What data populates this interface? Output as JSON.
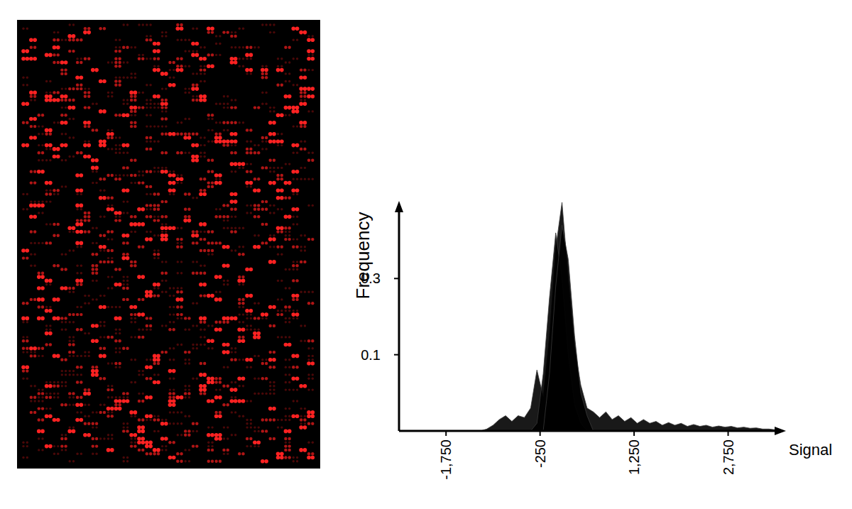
{
  "chart_data": {
    "type": "area",
    "xlabel": "Signal",
    "ylabel": "Frequency",
    "x": [
      -1300,
      -1200,
      -1100,
      -1000,
      -900,
      -800,
      -700,
      -600,
      -500,
      -400,
      -300,
      -200,
      -100,
      0,
      100,
      200,
      300,
      400,
      500,
      600,
      700,
      800,
      900,
      1000,
      1100,
      1200,
      1300,
      1400,
      1500,
      1600,
      1700,
      1800,
      1900,
      2000,
      2100,
      2200,
      2300,
      2400,
      2500,
      2600,
      2700,
      2800,
      2900,
      3000,
      3100,
      3200,
      3300,
      3400,
      3500,
      3600
    ],
    "series": [
      {
        "color": "#000000",
        "values": [
          -0.1,
          -0.1,
          -0.095,
          -0.085,
          -0.07,
          -0.06,
          -0.075,
          -0.06,
          -0.065,
          -0.04,
          0.06,
          -0.01,
          0.15,
          0.38,
          0.5,
          0.3,
          0.12,
          0.02,
          -0.04,
          -0.05,
          -0.065,
          -0.05,
          -0.07,
          -0.06,
          -0.075,
          -0.065,
          -0.08,
          -0.07,
          -0.08,
          -0.075,
          -0.085,
          -0.078,
          -0.085,
          -0.08,
          -0.088,
          -0.083,
          -0.088,
          -0.085,
          -0.09,
          -0.087,
          -0.09,
          -0.088,
          -0.092,
          -0.09,
          -0.093,
          -0.092,
          -0.095,
          -0.095,
          -0.097,
          -0.1
        ]
      },
      {
        "color": "#000000",
        "values": [
          -0.1,
          -0.1,
          -0.1,
          -0.1,
          -0.1,
          -0.1,
          -0.1,
          -0.1,
          -0.1,
          -0.1,
          -0.08,
          0.05,
          0.25,
          0.42,
          0.3,
          0.1,
          -0.03,
          -0.08,
          -0.1,
          -0.1,
          -0.1,
          -0.1,
          -0.1,
          -0.1,
          -0.1,
          -0.1,
          -0.1,
          -0.1,
          -0.1,
          -0.1,
          -0.1,
          -0.1,
          -0.1,
          -0.1,
          -0.1,
          -0.1,
          -0.1,
          -0.1,
          -0.1,
          -0.1,
          -0.1,
          -0.1,
          -0.1,
          -0.1,
          -0.1,
          -0.1,
          -0.1,
          -0.1,
          -0.1,
          -0.1
        ]
      },
      {
        "color": "#000000",
        "values": [
          -0.1,
          -0.1,
          -0.1,
          -0.1,
          -0.1,
          -0.1,
          -0.1,
          -0.1,
          -0.1,
          -0.1,
          -0.1,
          -0.1,
          0.05,
          0.28,
          0.44,
          0.35,
          0.15,
          0.0,
          -0.06,
          -0.1,
          -0.1,
          -0.1,
          -0.1,
          -0.1,
          -0.1,
          -0.1,
          -0.1,
          -0.1,
          -0.1,
          -0.1,
          -0.1,
          -0.1,
          -0.1,
          -0.1,
          -0.1,
          -0.1,
          -0.1,
          -0.1,
          -0.1,
          -0.1,
          -0.1,
          -0.1,
          -0.1,
          -0.1,
          -0.1,
          -0.1,
          -0.1,
          -0.1,
          -0.1,
          -0.1
        ]
      }
    ],
    "xlim": [
      -2500,
      3650
    ],
    "ylim": [
      -0.1,
      0.5
    ],
    "xticks": [
      {
        "value": -1750,
        "label": "-1,750"
      },
      -250,
      {
        "value": 1250,
        "label": "1,250"
      },
      {
        "value": 2750,
        "label": "2,750"
      }
    ],
    "yticks": [
      0.1,
      0.3
    ]
  }
}
